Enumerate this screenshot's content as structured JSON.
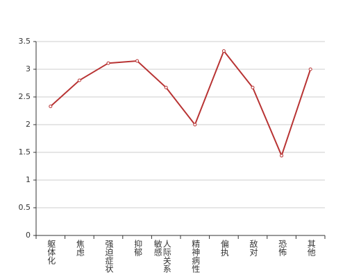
{
  "chart_data": {
    "type": "line",
    "categories": [
      "躯体化",
      "焦虑",
      "强迫症状",
      "抑郁",
      "人际关系敏感",
      "精神病性",
      "偏执",
      "敌对",
      "恐怖",
      "其他"
    ],
    "values": [
      2.33,
      2.8,
      3.11,
      3.15,
      2.67,
      2.0,
      3.33,
      2.67,
      1.44,
      3.0
    ],
    "color": "#b83333",
    "ylim": [
      0,
      3.5
    ],
    "yticks": [
      0,
      0.5,
      1,
      1.5,
      2,
      2.5,
      3,
      3.5
    ],
    "grid": true
  }
}
